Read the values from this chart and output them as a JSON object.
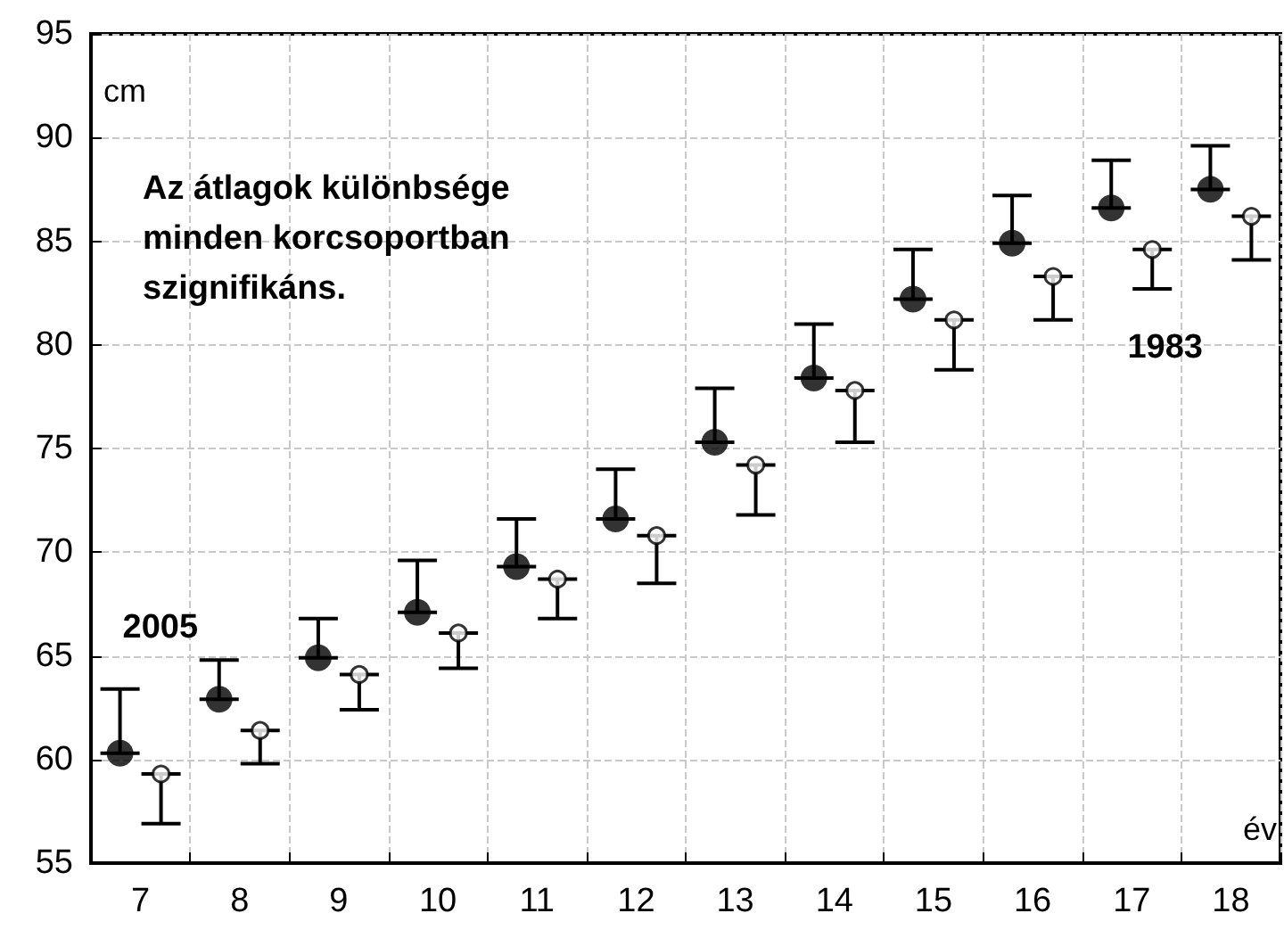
{
  "chart_data": {
    "type": "scatter",
    "xlabel": "év",
    "ylabel": "cm",
    "categories": [
      "7",
      "8",
      "9",
      "10",
      "11",
      "12",
      "13",
      "14",
      "15",
      "16",
      "17",
      "18"
    ],
    "series": [
      {
        "name": "2005",
        "color": "#000000",
        "values": [
          60.3,
          62.9,
          64.9,
          67.1,
          69.3,
          71.6,
          75.3,
          78.4,
          82.2,
          84.9,
          86.6,
          87.5
        ],
        "errors": [
          [
            60.3,
            63.4
          ],
          [
            62.9,
            64.8
          ],
          [
            64.9,
            66.8
          ],
          [
            67.1,
            69.6
          ],
          [
            69.3,
            71.6
          ],
          [
            71.6,
            74.0
          ],
          [
            75.3,
            77.9
          ],
          [
            78.4,
            81.0
          ],
          [
            82.2,
            84.6
          ],
          [
            84.9,
            87.2
          ],
          [
            86.6,
            88.9
          ],
          [
            87.5,
            89.6
          ]
        ]
      },
      {
        "name": "1983",
        "color": "#000000",
        "values": [
          59.3,
          61.4,
          64.1,
          66.1,
          68.7,
          70.8,
          74.2,
          77.8,
          81.2,
          83.3,
          84.6,
          86.2
        ],
        "errors": [
          [
            56.9,
            59.3
          ],
          [
            59.8,
            61.4
          ],
          [
            62.4,
            64.1
          ],
          [
            64.4,
            66.1
          ],
          [
            66.8,
            68.7
          ],
          [
            68.5,
            70.8
          ],
          [
            71.8,
            74.2
          ],
          [
            75.3,
            77.8
          ],
          [
            78.8,
            81.2
          ],
          [
            81.2,
            83.3
          ],
          [
            82.7,
            84.6
          ],
          [
            84.1,
            86.2
          ]
        ]
      }
    ],
    "ylim": [
      55,
      95
    ],
    "yticks": [
      55,
      60,
      65,
      70,
      75,
      80,
      85,
      90,
      95
    ],
    "grid": true,
    "legend": false,
    "marker": "circle",
    "annotations": [
      "Az átlagok különbsége minden korcsoportban szignifikáns."
    ]
  }
}
